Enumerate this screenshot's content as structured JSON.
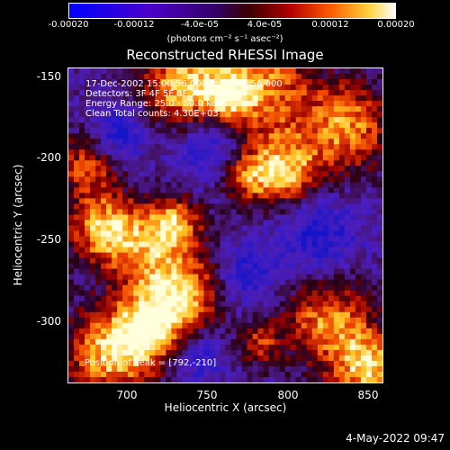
{
  "colorbar": {
    "ticks": [
      "-0.00020",
      "-0.00012",
      "-4.0e-05",
      "4.0e-05",
      "0.00012",
      "0.00020"
    ],
    "unit": "(photons cm⁻² s⁻¹ asec⁻²)"
  },
  "title": "Reconstructed RHESSI Image",
  "info": {
    "line1": "17-Dec-2002 15:00:56.000 to 15:06:56.000",
    "line2": "Detectors: 3F 4F 5F 6F 7F 8F, Att 0",
    "line3": "Energy Range: 25.0 - 50.0 keV",
    "line4": "Clean     Total counts: 4.30E+03"
  },
  "peak": "Position of Peak = [792,-210]",
  "axes": {
    "xlabel": "Heliocentric X (arcsec)",
    "ylabel": "Heliocentric Y (arcsec)",
    "xticks": [
      "700",
      "750",
      "800",
      "850"
    ],
    "yticks": [
      "-150",
      "-200",
      "-250",
      "-300"
    ]
  },
  "timestamp": "4-May-2022 09:47",
  "colors": {
    "background": "#000000",
    "text": "#ffffff"
  }
}
